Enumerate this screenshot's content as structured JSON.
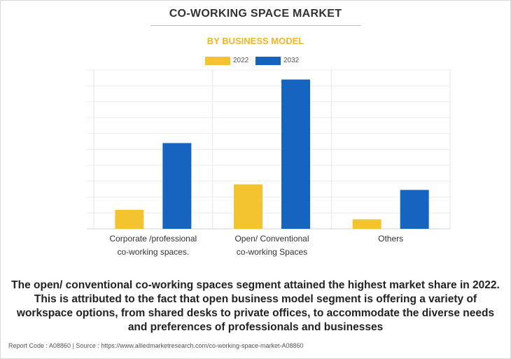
{
  "header": {
    "title": "CO-WORKING SPACE MARKET",
    "subtitle": "BY BUSINESS MODEL"
  },
  "chart_data": {
    "type": "bar",
    "categories": [
      "Corporate /professional co-working spaces.",
      "Open/ Conventional co-working Spaces",
      "Others"
    ],
    "category_lines": [
      [
        "Corporate /professional",
        "co-working spaces."
      ],
      [
        "Open/ Conventional",
        "co-working Spaces"
      ],
      [
        "Others"
      ]
    ],
    "series": [
      {
        "name": "2022",
        "color": "#f4c430",
        "values": [
          12,
          28,
          6
        ]
      },
      {
        "name": "2032",
        "color": "#1565c0",
        "values": [
          54,
          94,
          24.5
        ]
      }
    ],
    "ylim": [
      0,
      100
    ],
    "grid": true,
    "legend_position": "top-center"
  },
  "description": "The open/ conventional co-working spaces segment attained the highest market share in 2022. This is attributed to the fact that open business model segment is offering a variety of workspace options, from shared desks to private offices, to accommodate the diverse needs and preferences of professionals and businesses",
  "footer": "Report Code : A08860  |  Source : https://www.alliedmarketresearch.com/co-working-space-market-A08860"
}
